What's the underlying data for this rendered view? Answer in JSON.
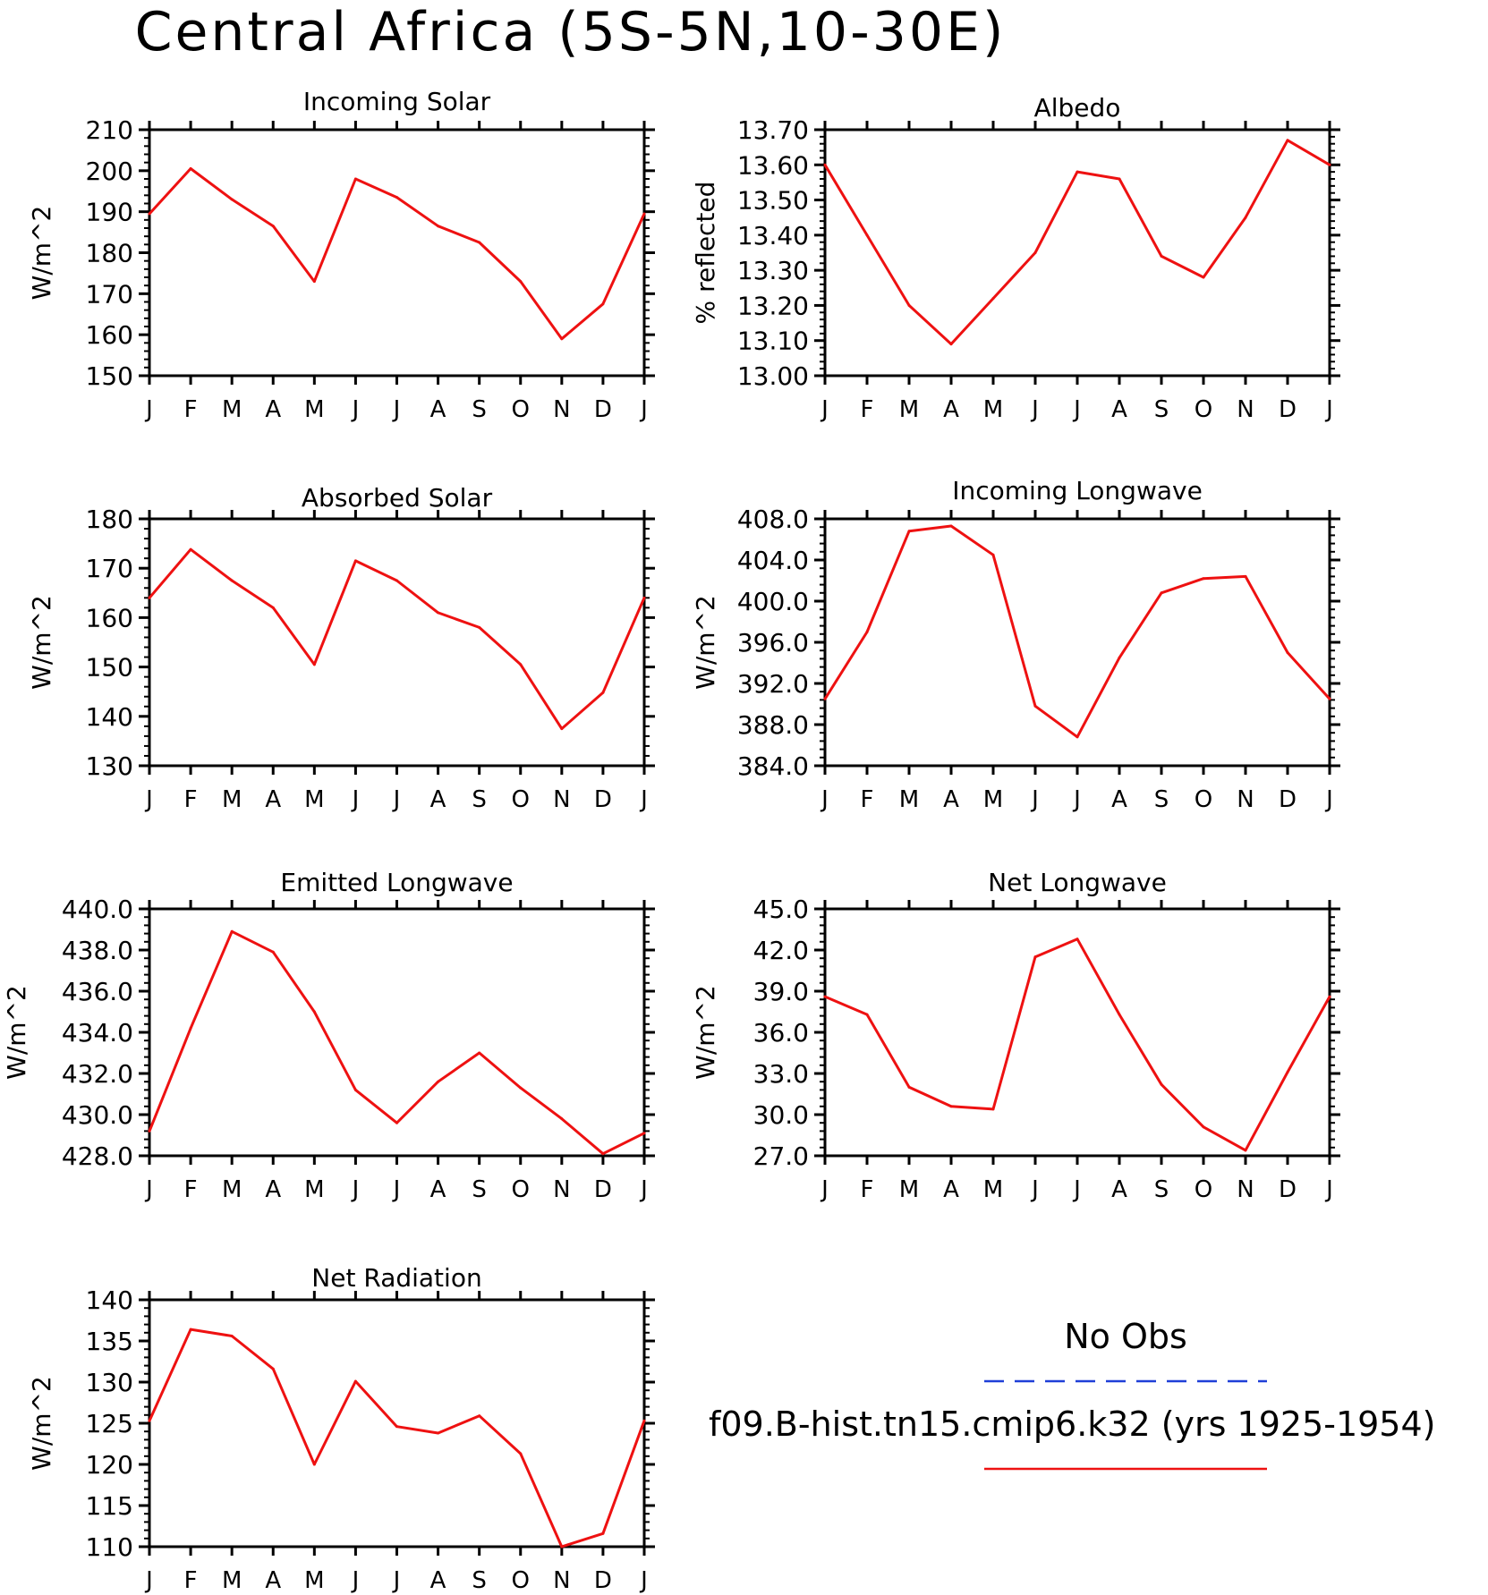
{
  "title": "Central Africa (5S-5N,10-30E)",
  "months": [
    "J",
    "F",
    "M",
    "A",
    "M",
    "J",
    "J",
    "A",
    "S",
    "O",
    "N",
    "D",
    "J"
  ],
  "legend": {
    "obs_label": "No Obs",
    "obs_color": "#1f3fd8",
    "model_label": "f09.B-hist.tn15.cmip6.k32 (yrs 1925-1954)",
    "model_color": "#ee1111"
  },
  "chart_data": [
    {
      "type": "line",
      "title": "Incoming Solar",
      "ylabel": "W/m^2",
      "ylim": [
        150,
        210
      ],
      "yticks": [
        "150",
        "160",
        "170",
        "180",
        "190",
        "200",
        "210"
      ],
      "series": [
        {
          "values": [
            189.5,
            200.5,
            193.0,
            186.5,
            173.0,
            198.0,
            193.5,
            186.5,
            182.5,
            173.0,
            159.0,
            167.5,
            189.5
          ]
        }
      ]
    },
    {
      "type": "line",
      "title": "Albedo",
      "ylabel": "% reflected",
      "ylim": [
        13.0,
        13.7
      ],
      "yticks": [
        "13.00",
        "13.10",
        "13.20",
        "13.30",
        "13.40",
        "13.50",
        "13.60",
        "13.70"
      ],
      "series": [
        {
          "values": [
            13.6,
            13.4,
            13.2,
            13.09,
            13.22,
            13.35,
            13.58,
            13.56,
            13.34,
            13.28,
            13.45,
            13.67,
            13.6
          ]
        }
      ]
    },
    {
      "type": "line",
      "title": "Absorbed Solar",
      "ylabel": "W/m^2",
      "ylim": [
        130,
        180
      ],
      "yticks": [
        "130",
        "140",
        "150",
        "160",
        "170",
        "180"
      ],
      "series": [
        {
          "values": [
            164.0,
            173.8,
            167.5,
            162.0,
            150.5,
            171.5,
            167.5,
            161.0,
            158.0,
            150.5,
            137.5,
            144.8,
            164.0
          ]
        }
      ]
    },
    {
      "type": "line",
      "title": "Incoming Longwave",
      "ylabel": "W/m^2",
      "ylim": [
        384,
        408
      ],
      "yticks": [
        "384.0",
        "388.0",
        "392.0",
        "396.0",
        "400.0",
        "404.0",
        "408.0"
      ],
      "series": [
        {
          "values": [
            390.5,
            397.0,
            406.8,
            407.3,
            404.5,
            389.8,
            386.8,
            394.5,
            400.8,
            402.2,
            402.4,
            395.0,
            390.5
          ]
        }
      ]
    },
    {
      "type": "line",
      "title": "Emitted Longwave",
      "ylabel": "W/m^2",
      "ylim": [
        428,
        440
      ],
      "yticks": [
        "428.0",
        "430.0",
        "432.0",
        "434.0",
        "436.0",
        "438.0",
        "440.0"
      ],
      "series": [
        {
          "values": [
            429.2,
            434.2,
            438.9,
            437.9,
            435.0,
            431.2,
            429.6,
            431.6,
            433.0,
            431.3,
            429.8,
            428.1,
            429.1
          ]
        }
      ]
    },
    {
      "type": "line",
      "title": "Net Longwave",
      "ylabel": "W/m^2",
      "ylim": [
        27,
        45
      ],
      "yticks": [
        "27.0",
        "30.0",
        "33.0",
        "36.0",
        "39.0",
        "42.0",
        "45.0"
      ],
      "series": [
        {
          "values": [
            38.6,
            37.3,
            32.0,
            30.6,
            30.4,
            41.5,
            42.8,
            37.3,
            32.2,
            29.1,
            27.4,
            33.1,
            38.6
          ]
        }
      ]
    },
    {
      "type": "line",
      "title": "Net Radiation",
      "ylabel": "W/m^2",
      "ylim": [
        110,
        140
      ],
      "yticks": [
        "110",
        "115",
        "120",
        "125",
        "130",
        "135",
        "140"
      ],
      "series": [
        {
          "values": [
            125.3,
            136.4,
            135.6,
            131.6,
            120.0,
            130.1,
            124.6,
            123.8,
            125.9,
            121.3,
            110.0,
            111.6,
            125.3
          ]
        }
      ]
    }
  ]
}
